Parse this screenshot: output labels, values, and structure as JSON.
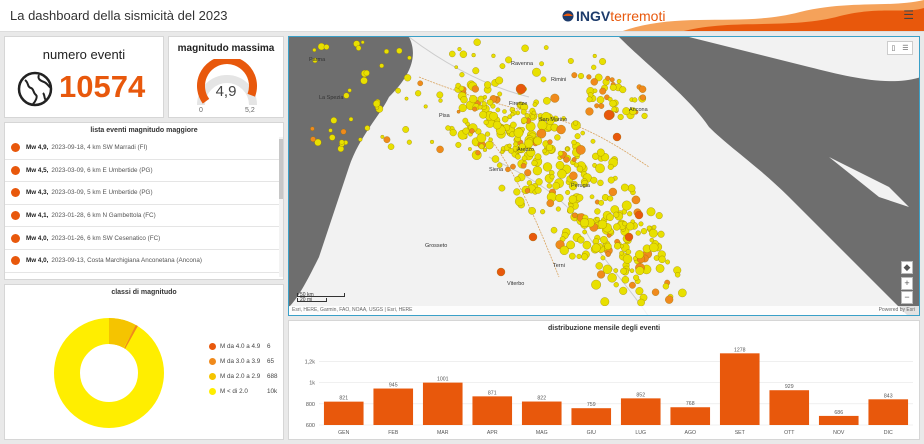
{
  "header": {
    "title": "La dashboard della sismicità del 2023",
    "logo_ingv": "INGV",
    "logo_terremoti": "terremoti",
    "menu_icon": "hamburger-icon"
  },
  "count_panel": {
    "label": "numero eventi",
    "value": "10574",
    "icon": "globe-icon"
  },
  "magnitude_panel": {
    "label": "magnitudo massima",
    "value": "4,9",
    "min": "0",
    "max": "5,2",
    "gauge_fraction": 0.94
  },
  "events_list": {
    "title": "lista eventi magnitudo maggiore",
    "items": [
      {
        "mw": "Mw 4,9,",
        "desc": "2023-09-18, 4 km SW Marradi (FI)"
      },
      {
        "mw": "Mw 4,5,",
        "desc": "2023-03-09, 6 km E Umbertide (PG)"
      },
      {
        "mw": "Mw 4,3,",
        "desc": "2023-03-09, 5 km E Umbertide (PG)"
      },
      {
        "mw": "Mw 4,1,",
        "desc": "2023-01-28, 6 km N Gambettola (FC)"
      },
      {
        "mw": "Mw 4,0,",
        "desc": "2023-01-26, 6 km SW Cesenatico (FC)"
      },
      {
        "mw": "Mw 4,0,",
        "desc": "2023-09-13, Costa Marchigiana Anconetana (Ancona)"
      }
    ]
  },
  "magnitude_classes": {
    "title": "classi di magnitudo",
    "legend": [
      {
        "label": "M da 4.0 a 4.9",
        "count": "6",
        "color": "#e8580c"
      },
      {
        "label": "M da 3.0 a 3.9",
        "count": "65",
        "color": "#f08a1c"
      },
      {
        "label": "M da 2.0 a 2.9",
        "count": "688",
        "color": "#f5c400"
      },
      {
        "label": "M < di 2.0",
        "count": "10k",
        "color": "#ffee00"
      }
    ]
  },
  "map": {
    "places": [
      "Pisa",
      "Firenze",
      "Siena",
      "Grosseto",
      "Perugia",
      "Ancona",
      "Ravenna",
      "Rimini",
      "Terni",
      "Viterbo",
      "San Marino",
      "Parma",
      "La Spezia",
      "Arezzo"
    ],
    "scale": [
      "50 km",
      "20 mi"
    ],
    "attribution": "Esri, HERE, Garmin, FAO, NOAA, USGS | Esri, HERE",
    "powered": "Powered by Esri",
    "zoom_in": "+",
    "zoom_out": "−"
  },
  "chart_data": {
    "type": "bar",
    "title": "distribuzione mensile degli eventi",
    "categories": [
      "GEN",
      "FEB",
      "MAR",
      "APR",
      "MAG",
      "GIU",
      "LUG",
      "AGO",
      "SET",
      "OTT",
      "NOV",
      "DIC"
    ],
    "values": [
      821,
      945,
      1001,
      871,
      822,
      759,
      852,
      768,
      1278,
      929,
      686,
      843
    ],
    "yticks": [
      "600",
      "800",
      "1k",
      "1,2k"
    ],
    "ylim": [
      600,
      1300
    ],
    "color": "#e8580c"
  }
}
